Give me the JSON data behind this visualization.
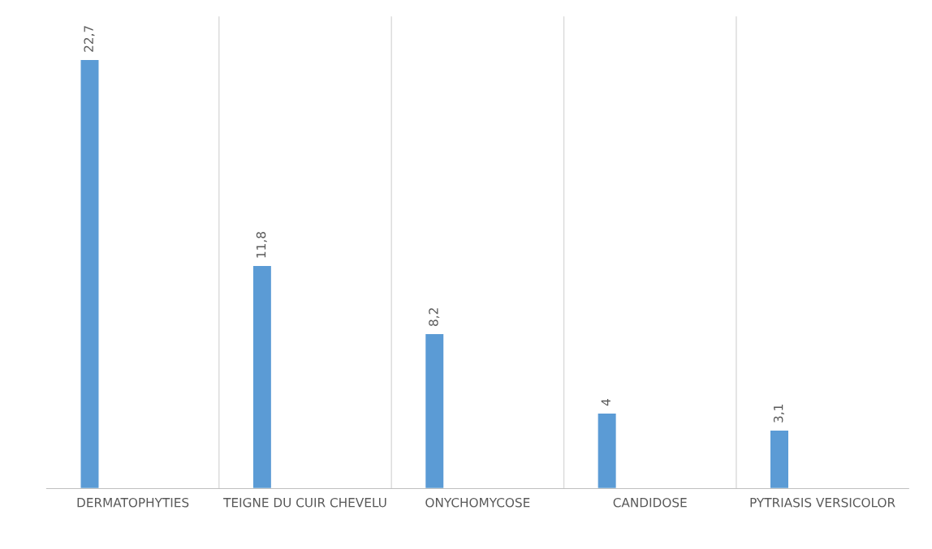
{
  "chart_data": {
    "type": "bar",
    "categories": [
      "DERMATOPHYTIES",
      "TEIGNE DU CUIR CHEVELU",
      "ONYCHOMYCOSE",
      "CANDIDOSE",
      "PYTRIASIS VERSICOLOR"
    ],
    "values": [
      22.7,
      11.8,
      8.2,
      4,
      3.1
    ],
    "value_labels": [
      "22,7",
      "11,8",
      "8,2",
      "4",
      "3,1"
    ],
    "color": "#5b9bd5",
    "grid": "x"
  }
}
